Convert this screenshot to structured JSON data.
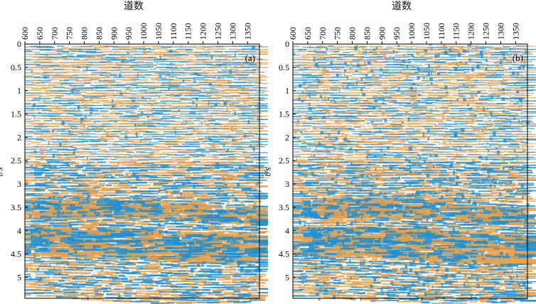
{
  "figure": {
    "x_axis_title": "道数",
    "y_axis_title": "t/s",
    "x_ticks": [
      "600",
      "650",
      "700",
      "750",
      "800",
      "850",
      "900",
      "950",
      "1000",
      "1050",
      "1100",
      "1150",
      "1200",
      "1250",
      "1300",
      "1350"
    ],
    "y_ticks": [
      "0",
      "0.5",
      "1",
      "1.5",
      "2",
      "2.5",
      "3",
      "3.5",
      "4",
      "4.5",
      "5"
    ],
    "colors": {
      "positive": "#e8a04a",
      "negative": "#1d8fd3",
      "background": "#f2f2ef",
      "frame": "#000000"
    }
  },
  "panels": [
    {
      "label": "(a)",
      "noise_level": 0.35
    },
    {
      "label": "(b)",
      "noise_level": 0.75
    }
  ]
}
